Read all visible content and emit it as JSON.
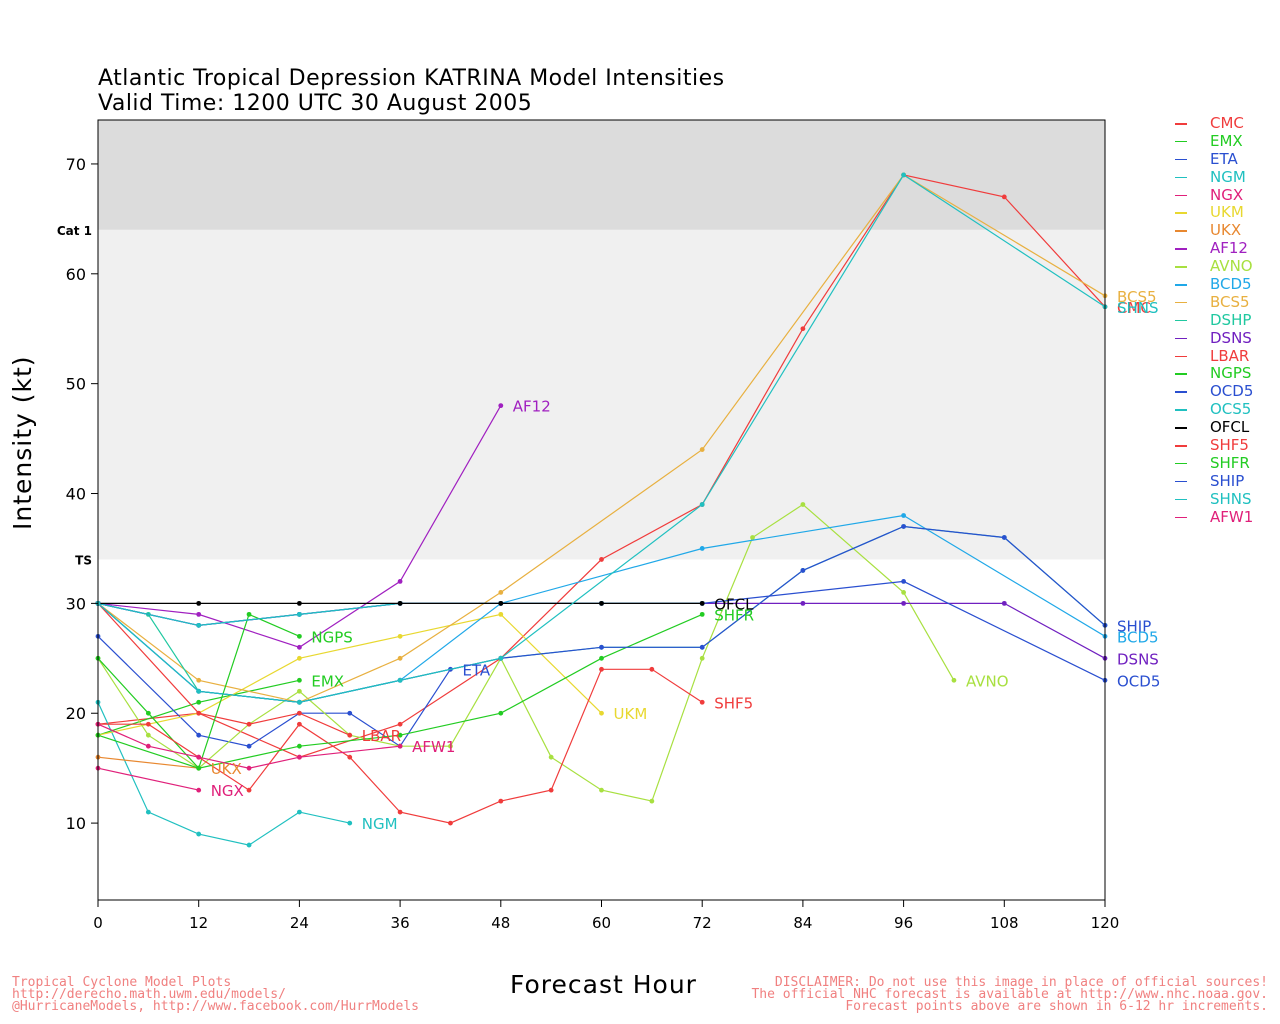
{
  "header": {
    "title": "Atlantic Tropical Depression KATRINA Model Intensities",
    "subtitle": "Valid Time: 1200 UTC 30 August 2005"
  },
  "axes": {
    "xlabel": "Forecast Hour",
    "ylabel": "Intensity (kt)"
  },
  "footer": {
    "left_lines": [
      "Tropical Cyclone Model Plots",
      "http://derecho.math.uwm.edu/models/",
      "@HurricaneModels, http://www.facebook.com/HurrModels"
    ],
    "right_lines": [
      "DISCLAIMER: Do not use this image in place of official sources!",
      "The official NHC forecast is available at http://www.nhc.noaa.gov.",
      "Forecast points above are shown in 6-12 hr increments."
    ]
  },
  "chart_data": {
    "type": "line",
    "title": "Atlantic Tropical Depression KATRINA Model Intensities",
    "subtitle": "Valid Time: 1200 UTC 30 August 2005",
    "xlabel": "Forecast Hour",
    "ylabel": "Intensity (kt)",
    "xlim": [
      0,
      120
    ],
    "ylim": [
      3,
      74
    ],
    "xticks": [
      0,
      12,
      24,
      36,
      48,
      60,
      72,
      84,
      96,
      108,
      120
    ],
    "yticks": [
      10,
      20,
      30,
      40,
      50,
      60,
      70
    ],
    "grid": false,
    "legend_position": "right-outside",
    "bands": [
      {
        "label": "",
        "from": 64,
        "to": 74,
        "color": "#dcdcdc"
      },
      {
        "label": "",
        "from": 34,
        "to": 64,
        "color": "#f0f0f0"
      }
    ],
    "thresholds": [
      {
        "label": "Cat 1",
        "value": 64
      },
      {
        "label": "TS",
        "value": 34
      }
    ],
    "series": [
      {
        "name": "CMC",
        "color": "#f03c3c",
        "end_label": "CMC",
        "points": [
          [
            0,
            19
          ],
          [
            12,
            20
          ],
          [
            24,
            16
          ],
          [
            36,
            19
          ],
          [
            48,
            25
          ],
          [
            60,
            34
          ],
          [
            72,
            39
          ],
          [
            84,
            55
          ],
          [
            96,
            69
          ],
          [
            108,
            67
          ],
          [
            120,
            57
          ]
        ]
      },
      {
        "name": "EMX",
        "color": "#22cc22",
        "end_label": "EMX",
        "points": [
          [
            0,
            18
          ],
          [
            12,
            21
          ],
          [
            24,
            23
          ]
        ]
      },
      {
        "name": "ETA",
        "color": "#2a4fd0",
        "end_label": "ETA",
        "points": [
          [
            0,
            27
          ],
          [
            12,
            18
          ],
          [
            18,
            17
          ],
          [
            24,
            20
          ],
          [
            30,
            20
          ],
          [
            36,
            17
          ],
          [
            42,
            24
          ]
        ]
      },
      {
        "name": "NGM",
        "color": "#20c0c0",
        "end_label": "NGM",
        "points": [
          [
            0,
            21
          ],
          [
            6,
            11
          ],
          [
            12,
            9
          ],
          [
            18,
            8
          ],
          [
            24,
            11
          ],
          [
            30,
            10
          ]
        ]
      },
      {
        "name": "NGX",
        "color": "#e0207a",
        "end_label": "NGX",
        "points": [
          [
            0,
            15
          ],
          [
            12,
            13
          ]
        ]
      },
      {
        "name": "UKM",
        "color": "#e8d830",
        "end_label": "UKM",
        "points": [
          [
            0,
            18
          ],
          [
            12,
            20
          ],
          [
            24,
            25
          ],
          [
            36,
            27
          ],
          [
            48,
            29
          ],
          [
            60,
            20
          ]
        ]
      },
      {
        "name": "UKX",
        "color": "#e88830",
        "end_label": "UKX",
        "points": [
          [
            0,
            16
          ],
          [
            12,
            15
          ]
        ]
      },
      {
        "name": "AF12",
        "color": "#a020c0",
        "end_label": "AF12",
        "points": [
          [
            0,
            30
          ],
          [
            12,
            29
          ],
          [
            24,
            26
          ],
          [
            36,
            32
          ],
          [
            48,
            48
          ]
        ]
      },
      {
        "name": "AVNO",
        "color": "#a8e040",
        "end_label": "AVNO",
        "points": [
          [
            0,
            25
          ],
          [
            6,
            18
          ],
          [
            12,
            15
          ],
          [
            18,
            19
          ],
          [
            24,
            22
          ],
          [
            30,
            18
          ],
          [
            36,
            17
          ],
          [
            42,
            17
          ],
          [
            48,
            25
          ],
          [
            54,
            16
          ],
          [
            60,
            13
          ],
          [
            66,
            12
          ],
          [
            72,
            25
          ],
          [
            78,
            36
          ],
          [
            84,
            39
          ],
          [
            96,
            31
          ],
          [
            102,
            23
          ]
        ]
      },
      {
        "name": "BCD5",
        "color": "#20a8e8",
        "end_label": "BCD5",
        "points": [
          [
            0,
            30
          ],
          [
            12,
            22
          ],
          [
            24,
            21
          ],
          [
            36,
            23
          ],
          [
            48,
            30
          ],
          [
            72,
            35
          ],
          [
            96,
            38
          ],
          [
            120,
            27
          ]
        ]
      },
      {
        "name": "BCS5",
        "color": "#e8b040",
        "end_label": "BCS5",
        "points": [
          [
            0,
            30
          ],
          [
            12,
            23
          ],
          [
            24,
            21
          ],
          [
            36,
            25
          ],
          [
            48,
            31
          ],
          [
            72,
            44
          ],
          [
            96,
            69
          ],
          [
            120,
            58
          ]
        ]
      },
      {
        "name": "DSHP",
        "color": "#20c8a0",
        "end_label": "",
        "points": [
          [
            0,
            30
          ],
          [
            6,
            29
          ],
          [
            12,
            22
          ],
          [
            24,
            21
          ],
          [
            36,
            23
          ],
          [
            48,
            25
          ],
          [
            60,
            26
          ],
          [
            72,
            26
          ],
          [
            84,
            33
          ],
          [
            96,
            37
          ],
          [
            108,
            36
          ],
          [
            120,
            28
          ]
        ]
      },
      {
        "name": "DSNS",
        "color": "#7020c0",
        "end_label": "DSNS",
        "points": [
          [
            0,
            30
          ],
          [
            12,
            28
          ],
          [
            24,
            29
          ],
          [
            36,
            30
          ],
          [
            48,
            30
          ],
          [
            60,
            30
          ],
          [
            72,
            30
          ],
          [
            84,
            30
          ],
          [
            96,
            30
          ],
          [
            108,
            30
          ],
          [
            120,
            25
          ]
        ]
      },
      {
        "name": "LBAR",
        "color": "#f03c3c",
        "end_label": "LBAR",
        "points": [
          [
            0,
            30
          ],
          [
            12,
            20
          ],
          [
            18,
            19
          ],
          [
            24,
            20
          ],
          [
            30,
            18
          ]
        ]
      },
      {
        "name": "NGPS",
        "color": "#22cc22",
        "end_label": "NGPS",
        "points": [
          [
            0,
            25
          ],
          [
            6,
            20
          ],
          [
            12,
            15
          ],
          [
            18,
            29
          ],
          [
            24,
            27
          ]
        ]
      },
      {
        "name": "OCD5",
        "color": "#2a4fd0",
        "end_label": "OCD5",
        "points": [
          [
            0,
            30
          ],
          [
            12,
            28
          ],
          [
            24,
            29
          ],
          [
            36,
            30
          ],
          [
            48,
            30
          ],
          [
            60,
            30
          ],
          [
            72,
            30
          ],
          [
            96,
            32
          ],
          [
            120,
            23
          ]
        ]
      },
      {
        "name": "OCS5",
        "color": "#20c0c0",
        "end_label": "",
        "points": [
          [
            0,
            30
          ],
          [
            12,
            28
          ],
          [
            24,
            29
          ],
          [
            36,
            30
          ],
          [
            48,
            30
          ],
          [
            60,
            30
          ],
          [
            72,
            30
          ]
        ]
      },
      {
        "name": "OFCL",
        "color": "#000000",
        "end_label": "OFCL",
        "points": [
          [
            0,
            30
          ],
          [
            12,
            30
          ],
          [
            24,
            30
          ],
          [
            36,
            30
          ],
          [
            48,
            30
          ],
          [
            60,
            30
          ],
          [
            72,
            30
          ]
        ]
      },
      {
        "name": "SHF5",
        "color": "#f03c3c",
        "end_label": "SHF5",
        "points": [
          [
            0,
            19
          ],
          [
            6,
            19
          ],
          [
            12,
            16
          ],
          [
            18,
            13
          ],
          [
            24,
            19
          ],
          [
            30,
            16
          ],
          [
            36,
            11
          ],
          [
            42,
            10
          ],
          [
            48,
            12
          ],
          [
            54,
            13
          ],
          [
            60,
            24
          ],
          [
            66,
            24
          ],
          [
            72,
            21
          ]
        ]
      },
      {
        "name": "SHFR",
        "color": "#22cc22",
        "end_label": "SHFR",
        "points": [
          [
            0,
            18
          ],
          [
            12,
            15
          ],
          [
            24,
            17
          ],
          [
            36,
            18
          ],
          [
            48,
            20
          ],
          [
            60,
            25
          ],
          [
            72,
            29
          ]
        ]
      },
      {
        "name": "SHIP",
        "color": "#2a4fd0",
        "end_label": "SHIP",
        "points": [
          [
            0,
            30
          ],
          [
            12,
            22
          ],
          [
            24,
            21
          ],
          [
            36,
            23
          ],
          [
            48,
            25
          ],
          [
            60,
            26
          ],
          [
            72,
            26
          ],
          [
            84,
            33
          ],
          [
            96,
            37
          ],
          [
            108,
            36
          ],
          [
            120,
            28
          ]
        ]
      },
      {
        "name": "SHNS",
        "color": "#20c0c0",
        "end_label": "SHNS",
        "points": [
          [
            0,
            30
          ],
          [
            12,
            22
          ],
          [
            24,
            21
          ],
          [
            36,
            23
          ],
          [
            48,
            25
          ],
          [
            72,
            39
          ],
          [
            96,
            69
          ],
          [
            120,
            57
          ]
        ]
      },
      {
        "name": "AFW1",
        "color": "#e0207a",
        "end_label": "AFW1",
        "points": [
          [
            0,
            19
          ],
          [
            6,
            17
          ],
          [
            12,
            16
          ],
          [
            18,
            15
          ],
          [
            24,
            16
          ],
          [
            36,
            17
          ]
        ]
      }
    ]
  }
}
